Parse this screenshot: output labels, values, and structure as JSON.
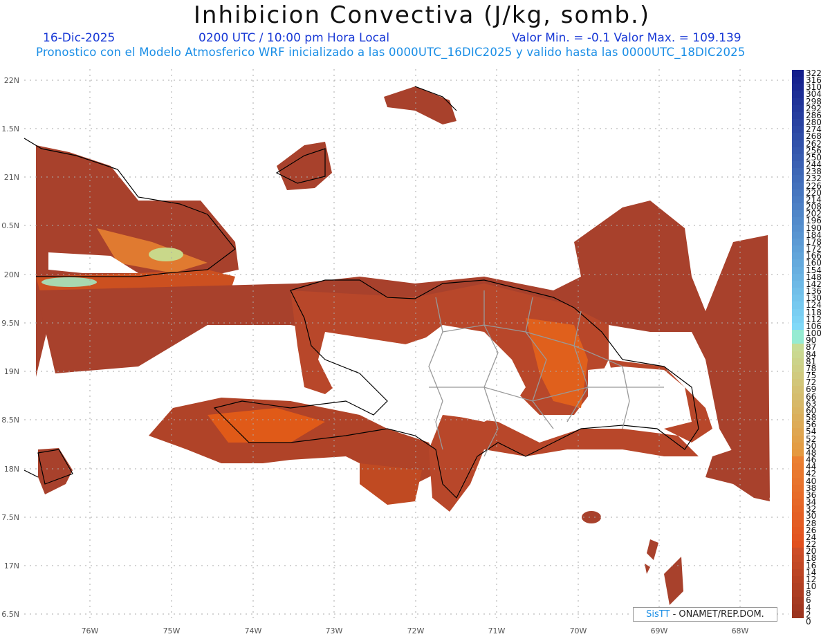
{
  "title": "Inhibicion Convectiva (J/kg, somb.)",
  "header": {
    "date": "16-Dic-2025",
    "time": "0200 UTC / 10:00 pm Hora Local",
    "minmax": "Valor Min. = -0.1  Valor Max. = 109.139",
    "subtitle": "Pronostico con el Modelo Atmosferico WRF inicializado a las 0000UTC_16DIC2025 y valido hasta las  0000UTC_18DIC2025"
  },
  "lat_labels": [
    "22N",
    "1.5N",
    "21N",
    "0.5N",
    "20N",
    "9.5N",
    "19N",
    "8.5N",
    "18N",
    "7.5N",
    "17N",
    "6.5N"
  ],
  "lon_labels": [
    "76W",
    "75W",
    "74W",
    "73W",
    "72W",
    "71W",
    "70W",
    "69W",
    "68W"
  ],
  "colorbar_labels": [
    "322",
    "316",
    "310",
    "304",
    "298",
    "292",
    "286",
    "280",
    "274",
    "268",
    "262",
    "256",
    "250",
    "244",
    "238",
    "232",
    "226",
    "220",
    "214",
    "208",
    "202",
    "196",
    "190",
    "184",
    "178",
    "172",
    "166",
    "160",
    "154",
    "148",
    "142",
    "136",
    "130",
    "124",
    "118",
    "112",
    "106",
    "100",
    "90",
    "87",
    "84",
    "81",
    "78",
    "75",
    "72",
    "69",
    "66",
    "63",
    "60",
    "58",
    "56",
    "54",
    "52",
    "50",
    "48",
    "46",
    "44",
    "42",
    "40",
    "38",
    "36",
    "34",
    "32",
    "30",
    "28",
    "26",
    "24",
    "22",
    "20",
    "18",
    "16",
    "14",
    "12",
    "10",
    "8",
    "6",
    "4",
    "2",
    "0"
  ],
  "credit": {
    "sis": "SisTT",
    "rest": " - ONAMET/REP.DOM."
  },
  "colors": {
    "low": "#9e3a2a",
    "mid": "#e05a18",
    "high": "#8fdcc0"
  }
}
